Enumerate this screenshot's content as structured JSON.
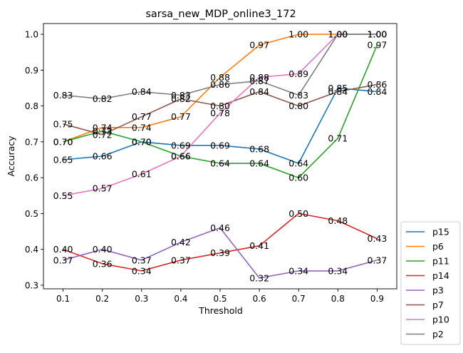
{
  "chart_data": {
    "type": "line",
    "title": "sarsa_new_MDP_online3_172",
    "xlabel": "Threshold",
    "ylabel": "Accuracy",
    "x": [
      0.1,
      0.2,
      0.3,
      0.4,
      0.5,
      0.6,
      0.7,
      0.8,
      0.9
    ],
    "xticks": [
      "0.1",
      "0.2",
      "0.3",
      "0.4",
      "0.5",
      "0.6",
      "0.7",
      "0.8",
      "0.9"
    ],
    "yticks": [
      "0.3",
      "0.4",
      "0.5",
      "0.6",
      "0.7",
      "0.8",
      "0.9",
      "1.0"
    ],
    "xlim": [
      0.05,
      0.95
    ],
    "ylim": [
      0.29,
      1.03
    ],
    "legend_position": "outside-right-bottom",
    "grid": false,
    "series": [
      {
        "name": "p15",
        "color": "#1f77b4",
        "values": [
          0.65,
          0.66,
          0.7,
          0.69,
          0.69,
          0.68,
          0.64,
          0.85,
          0.84
        ],
        "labels": [
          "0.65",
          "0.66",
          "0.70",
          "0.69",
          "0.69",
          "0.68",
          "0.64",
          "0.85",
          "0.84"
        ]
      },
      {
        "name": "p6",
        "color": "#ff7f0e",
        "values": [
          0.7,
          0.74,
          0.74,
          0.77,
          0.88,
          0.97,
          1.0,
          1.0,
          1.0
        ],
        "labels": [
          "0.70",
          "0.74",
          "0.74",
          "0.77",
          "0.88",
          "0.97",
          "1.00",
          "1.00",
          "1.00"
        ]
      },
      {
        "name": "p11",
        "color": "#2ca02c",
        "values": [
          0.7,
          0.73,
          0.7,
          0.66,
          0.64,
          0.64,
          0.6,
          0.71,
          0.97
        ],
        "labels": [
          "0.70",
          "0.73",
          "0.70",
          "0.66",
          "0.64",
          "0.64",
          "0.60",
          "0.71",
          "0.97"
        ]
      },
      {
        "name": "p14",
        "color": "#d62728",
        "values": [
          0.4,
          0.36,
          0.34,
          0.37,
          0.39,
          0.41,
          0.5,
          0.48,
          0.43
        ],
        "labels": [
          "0.40",
          "0.36",
          "0.34",
          "0.37",
          "0.39",
          "0.41",
          "0.50",
          "0.48",
          "0.43"
        ]
      },
      {
        "name": "p3",
        "color": "#9467bd",
        "values": [
          0.37,
          0.4,
          0.37,
          0.42,
          0.46,
          0.32,
          0.34,
          0.34,
          0.37
        ],
        "labels": [
          "0.37",
          "0.40",
          "0.37",
          "0.42",
          "0.46",
          "0.32",
          "0.34",
          "0.34",
          "0.37"
        ]
      },
      {
        "name": "p7",
        "color": "#8c564b",
        "values": [
          0.75,
          0.72,
          0.77,
          0.82,
          0.8,
          0.84,
          0.8,
          0.84,
          0.86
        ],
        "labels": [
          "0.75",
          "0.72",
          "0.77",
          "0.82",
          "0.80",
          "0.84",
          "0.80",
          "0.84",
          "0.86"
        ]
      },
      {
        "name": "p10",
        "color": "#e377c2",
        "values": [
          0.55,
          0.57,
          0.61,
          0.66,
          0.78,
          0.88,
          0.89,
          1.0,
          1.0
        ],
        "labels": [
          "0.55",
          "0.57",
          "0.61",
          "0.66",
          "0.78",
          "0.88",
          "0.89",
          "1.00",
          "1.00"
        ]
      },
      {
        "name": "p2",
        "color": "#7f7f7f",
        "values": [
          0.83,
          0.82,
          0.84,
          0.83,
          0.86,
          0.87,
          0.83,
          1.0,
          1.0
        ],
        "labels": [
          "0.83",
          "0.82",
          "0.84",
          "0.83",
          "0.86",
          "0.87",
          "0.83",
          "1.00",
          "1.00"
        ]
      }
    ]
  }
}
